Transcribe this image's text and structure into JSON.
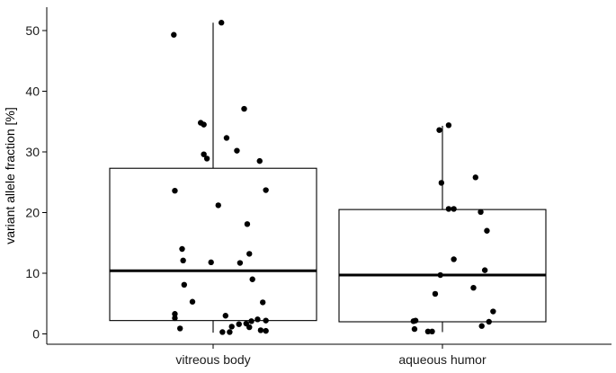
{
  "chart_data": {
    "type": "box",
    "ylabel": "variant allele fraction [%]",
    "xlabel": "",
    "ylim": [
      0,
      53
    ],
    "yticks": [
      0,
      10,
      20,
      30,
      40,
      50
    ],
    "grid": false,
    "categories": [
      "vitreous body",
      "aqueous humor"
    ],
    "boxes": [
      {
        "category": "vitreous body",
        "min": 0.2,
        "q1": 2.2,
        "median": 10.4,
        "q3": 27.3,
        "max": 51.3,
        "points": [
          {
            "jitter": -0.38,
            "y": 49.3
          },
          {
            "jitter": 0.08,
            "y": 51.3
          },
          {
            "jitter": 0.3,
            "y": 37.1
          },
          {
            "jitter": -0.12,
            "y": 34.8
          },
          {
            "jitter": -0.09,
            "y": 34.5
          },
          {
            "jitter": 0.13,
            "y": 32.3
          },
          {
            "jitter": 0.23,
            "y": 30.2
          },
          {
            "jitter": -0.09,
            "y": 29.6
          },
          {
            "jitter": -0.06,
            "y": 28.9
          },
          {
            "jitter": 0.45,
            "y": 28.5
          },
          {
            "jitter": -0.37,
            "y": 23.6
          },
          {
            "jitter": 0.51,
            "y": 23.7
          },
          {
            "jitter": 0.05,
            "y": 21.2
          },
          {
            "jitter": 0.33,
            "y": 18.1
          },
          {
            "jitter": -0.3,
            "y": 14.0
          },
          {
            "jitter": 0.35,
            "y": 13.2
          },
          {
            "jitter": -0.29,
            "y": 12.1
          },
          {
            "jitter": -0.02,
            "y": 11.8
          },
          {
            "jitter": 0.26,
            "y": 11.7
          },
          {
            "jitter": 0.38,
            "y": 9.0
          },
          {
            "jitter": -0.28,
            "y": 8.1
          },
          {
            "jitter": -0.2,
            "y": 5.3
          },
          {
            "jitter": 0.48,
            "y": 5.2
          },
          {
            "jitter": -0.37,
            "y": 3.3
          },
          {
            "jitter": 0.12,
            "y": 3.0
          },
          {
            "jitter": -0.37,
            "y": 2.6
          },
          {
            "jitter": 0.37,
            "y": 2.1
          },
          {
            "jitter": 0.43,
            "y": 2.4
          },
          {
            "jitter": 0.51,
            "y": 2.2
          },
          {
            "jitter": 0.32,
            "y": 1.7
          },
          {
            "jitter": 0.25,
            "y": 1.6
          },
          {
            "jitter": 0.18,
            "y": 1.2
          },
          {
            "jitter": 0.35,
            "y": 1.1
          },
          {
            "jitter": -0.32,
            "y": 0.9
          },
          {
            "jitter": 0.46,
            "y": 0.6
          },
          {
            "jitter": 0.51,
            "y": 0.5
          },
          {
            "jitter": 0.09,
            "y": 0.3
          },
          {
            "jitter": 0.16,
            "y": 0.3
          }
        ]
      },
      {
        "category": "aqueous humor",
        "min": 0.3,
        "q1": 2.0,
        "median": 9.7,
        "q3": 20.5,
        "max": 34.3,
        "points": [
          {
            "jitter": 0.06,
            "y": 34.4
          },
          {
            "jitter": -0.03,
            "y": 33.6
          },
          {
            "jitter": 0.32,
            "y": 25.8
          },
          {
            "jitter": -0.01,
            "y": 24.9
          },
          {
            "jitter": 0.06,
            "y": 20.6
          },
          {
            "jitter": 0.11,
            "y": 20.6
          },
          {
            "jitter": 0.37,
            "y": 20.1
          },
          {
            "jitter": 0.43,
            "y": 17.0
          },
          {
            "jitter": 0.11,
            "y": 12.3
          },
          {
            "jitter": 0.41,
            "y": 10.5
          },
          {
            "jitter": -0.02,
            "y": 9.7
          },
          {
            "jitter": 0.3,
            "y": 7.6
          },
          {
            "jitter": -0.07,
            "y": 6.6
          },
          {
            "jitter": 0.49,
            "y": 3.7
          },
          {
            "jitter": -0.26,
            "y": 2.2
          },
          {
            "jitter": -0.28,
            "y": 2.1
          },
          {
            "jitter": 0.45,
            "y": 2.0
          },
          {
            "jitter": 0.38,
            "y": 1.3
          },
          {
            "jitter": -0.27,
            "y": 0.8
          },
          {
            "jitter": -0.14,
            "y": 0.4
          },
          {
            "jitter": -0.1,
            "y": 0.4
          }
        ]
      }
    ],
    "colors": {
      "box_fill": "#ffffff",
      "stroke": "#000000",
      "points": "#000000"
    }
  }
}
